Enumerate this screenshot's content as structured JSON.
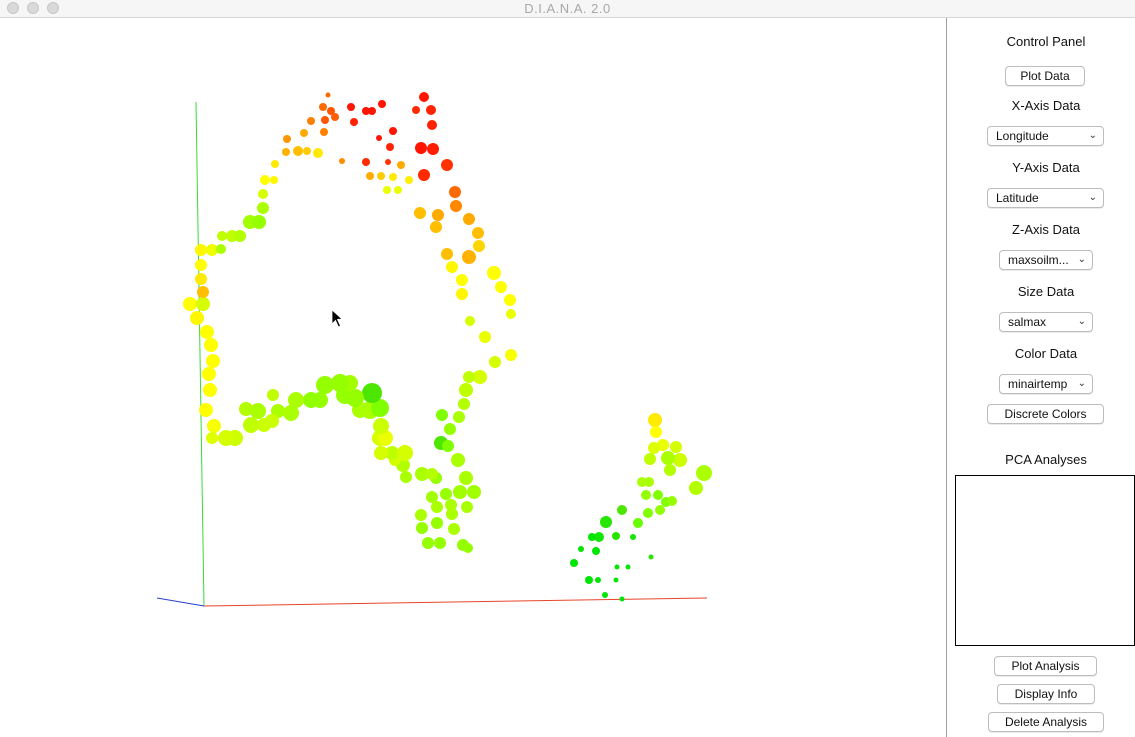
{
  "window": {
    "title": "D.I.A.N.A. 2.0"
  },
  "panel": {
    "heading": "Control Panel",
    "plot_data_label": "Plot Data",
    "x_axis": {
      "label": "X-Axis Data",
      "value": "Longitude"
    },
    "y_axis": {
      "label": "Y-Axis Data",
      "value": "Latitude"
    },
    "z_axis": {
      "label": "Z-Axis Data",
      "value": "maxsoilm..."
    },
    "size": {
      "label": "Size Data",
      "value": "salmax"
    },
    "color": {
      "label": "Color Data",
      "value": "minairtemp"
    },
    "discrete_colors_label": "Discrete Colors",
    "pca_heading": "PCA Analyses",
    "plot_analysis_label": "Plot Analysis",
    "display_info_label": "Display Info",
    "delete_analysis_label": "Delete Analysis"
  },
  "colors": {
    "axis_x": "#e8452a",
    "axis_y": "#3ad93a",
    "axis_z": "#2a3fd8"
  },
  "icons": {
    "dropdown": "chevron-down-icon",
    "cursor": "mouse-pointer-icon"
  }
}
